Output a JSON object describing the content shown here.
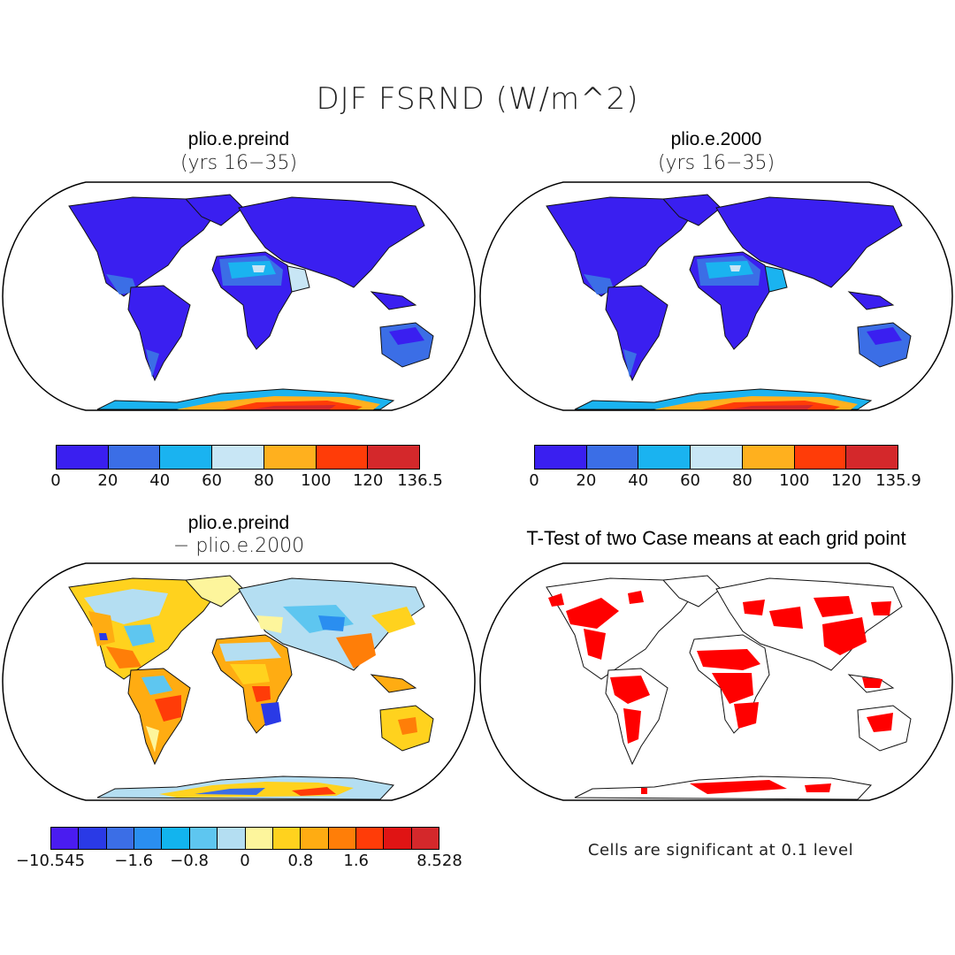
{
  "title": "DJF FSRND (W/m^2)",
  "panels": {
    "top_left": {
      "title": "plio.e.preind",
      "subtitle": "(yrs 16−35)",
      "colorbar": {
        "colors": [
          "#3a1ff0",
          "#3b6ee6",
          "#1ab3f0",
          "#c8e6f5",
          "#ffb01e",
          "#ff3c08",
          "#d4282b"
        ],
        "ticks": [
          "0",
          "20",
          "40",
          "60",
          "80",
          "100",
          "120",
          "136.5"
        ]
      }
    },
    "top_right": {
      "title": "plio.e.2000",
      "subtitle": "(yrs 16−35)",
      "colorbar": {
        "colors": [
          "#3a1ff0",
          "#3b6ee6",
          "#1ab3f0",
          "#c8e6f5",
          "#ffb01e",
          "#ff3c08",
          "#d4282b"
        ],
        "ticks": [
          "0",
          "20",
          "40",
          "60",
          "80",
          "100",
          "120",
          "135.9"
        ]
      }
    },
    "bottom_left": {
      "title": "plio.e.preind",
      "subtitle": "− plio.e.2000",
      "colorbar": {
        "colors": [
          "#4a1cf0",
          "#2a3ae6",
          "#3b6ee6",
          "#2a8ef0",
          "#12b4ee",
          "#5ec6f0",
          "#b4def2",
          "#fdf59c",
          "#ffd21e",
          "#ffac12",
          "#ff7e08",
          "#ff3c08",
          "#e01414",
          "#d4282b"
        ],
        "ticks": [
          "−10.545",
          "−1.6",
          "−0.8",
          "0",
          "0.8",
          "1.6",
          "8.528"
        ]
      }
    },
    "bottom_right": {
      "title": "T-Test of two Case means at each grid point",
      "note": "Cells are significant at 0.1 level",
      "sig_color": "#ff0000"
    }
  }
}
